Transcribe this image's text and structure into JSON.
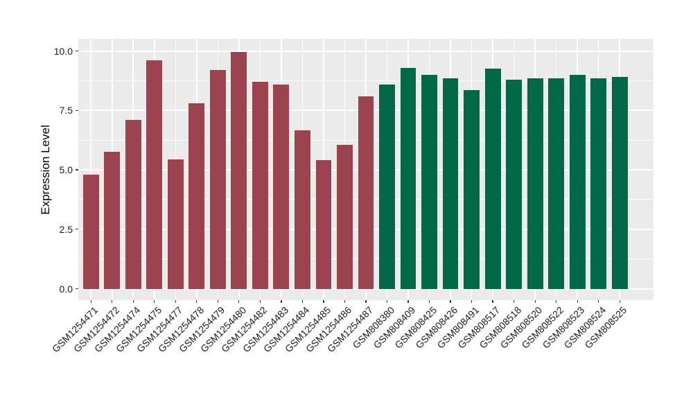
{
  "chart_data": {
    "type": "bar",
    "title": "",
    "xlabel": "",
    "ylabel": "Expression Level",
    "ylim": [
      0,
      10
    ],
    "ytick_values": [
      0,
      2.5,
      5,
      7.5,
      10
    ],
    "ytick_labels": [
      "0.0",
      "2.5",
      "5.0",
      "7.5",
      "10.0"
    ],
    "minor_tick_values": [
      1.25,
      3.75,
      6.25,
      8.75
    ],
    "grid": "major and minor horizontal white gridlines, vertical white gridline at each category",
    "legend_position": "none",
    "panel_background": "#EBEBEB",
    "gridline_color": "#FFFFFF",
    "axis_text_color": "#1A1A1A",
    "group_colors": [
      "#9B4450",
      "#016847"
    ],
    "categories": [
      "GSM1254471",
      "GSM1254472",
      "GSM1254474",
      "GSM1254475",
      "GSM1254477",
      "GSM1254478",
      "GSM1254479",
      "GSM1254480",
      "GSM1254482",
      "GSM1254483",
      "GSM1254484",
      "GSM1254485",
      "GSM1254486",
      "GSM1254487",
      "GSM808380",
      "GSM808409",
      "GSM808425",
      "GSM808426",
      "GSM808491",
      "GSM808517",
      "GSM808518",
      "GSM808520",
      "GSM808522",
      "GSM808523",
      "GSM808524",
      "GSM808525"
    ],
    "values": [
      4.8,
      5.75,
      7.1,
      9.6,
      5.45,
      7.8,
      9.2,
      9.97,
      8.7,
      8.6,
      6.65,
      5.4,
      6.05,
      8.1,
      8.6,
      9.3,
      9.0,
      8.85,
      8.35,
      9.25,
      8.8,
      8.85,
      8.85,
      9.0,
      8.85,
      8.9
    ],
    "bars": [
      {
        "label": "GSM1254471",
        "value": 4.8,
        "color": "#9B4450"
      },
      {
        "label": "GSM1254472",
        "value": 5.75,
        "color": "#9B4450"
      },
      {
        "label": "GSM1254474",
        "value": 7.1,
        "color": "#9B4450"
      },
      {
        "label": "GSM1254475",
        "value": 9.6,
        "color": "#9B4450"
      },
      {
        "label": "GSM1254477",
        "value": 5.45,
        "color": "#9B4450"
      },
      {
        "label": "GSM1254478",
        "value": 7.8,
        "color": "#9B4450"
      },
      {
        "label": "GSM1254479",
        "value": 9.2,
        "color": "#9B4450"
      },
      {
        "label": "GSM1254480",
        "value": 9.97,
        "color": "#9B4450"
      },
      {
        "label": "GSM1254482",
        "value": 8.7,
        "color": "#9B4450"
      },
      {
        "label": "GSM1254483",
        "value": 8.6,
        "color": "#9B4450"
      },
      {
        "label": "GSM1254484",
        "value": 6.65,
        "color": "#9B4450"
      },
      {
        "label": "GSM1254485",
        "value": 5.4,
        "color": "#9B4450"
      },
      {
        "label": "GSM1254486",
        "value": 6.05,
        "color": "#9B4450"
      },
      {
        "label": "GSM1254487",
        "value": 8.1,
        "color": "#9B4450"
      },
      {
        "label": "GSM808380",
        "value": 8.6,
        "color": "#016847"
      },
      {
        "label": "GSM808409",
        "value": 9.3,
        "color": "#016847"
      },
      {
        "label": "GSM808425",
        "value": 9.0,
        "color": "#016847"
      },
      {
        "label": "GSM808426",
        "value": 8.85,
        "color": "#016847"
      },
      {
        "label": "GSM808491",
        "value": 8.35,
        "color": "#016847"
      },
      {
        "label": "GSM808517",
        "value": 9.25,
        "color": "#016847"
      },
      {
        "label": "GSM808518",
        "value": 8.8,
        "color": "#016847"
      },
      {
        "label": "GSM808520",
        "value": 8.85,
        "color": "#016847"
      },
      {
        "label": "GSM808522",
        "value": 8.85,
        "color": "#016847"
      },
      {
        "label": "GSM808523",
        "value": 9.0,
        "color": "#016847"
      },
      {
        "label": "GSM808524",
        "value": 8.85,
        "color": "#016847"
      },
      {
        "label": "GSM808525",
        "value": 8.9,
        "color": "#016847"
      }
    ]
  }
}
